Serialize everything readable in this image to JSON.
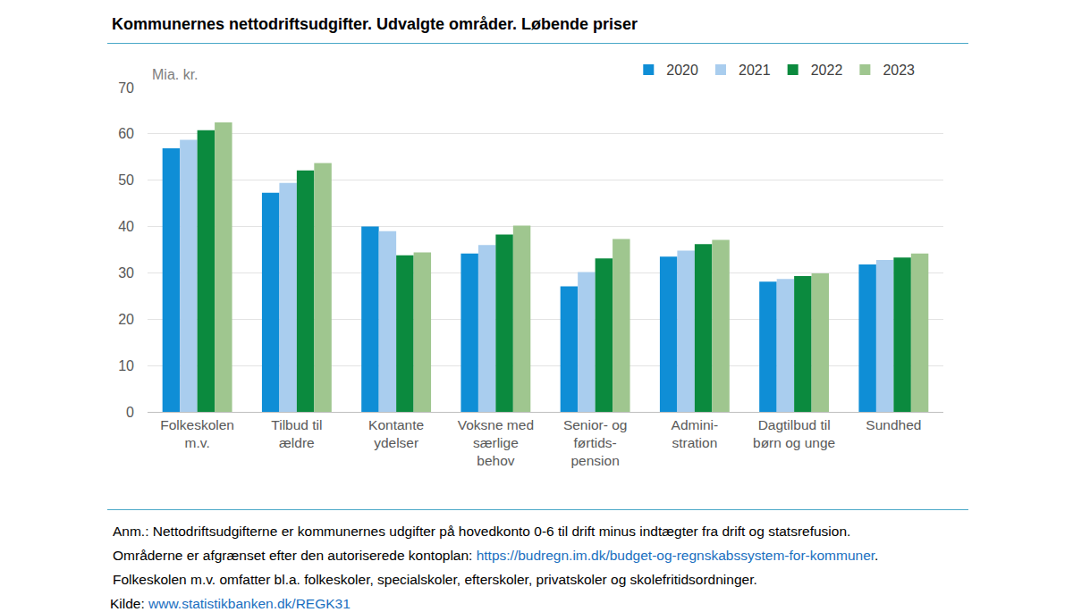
{
  "chart_data": {
    "type": "bar",
    "title": "Kommunernes nettodriftsudgifter. Udvalgte områder. Løbende priser",
    "y_label": "Mia. kr.",
    "categories": [
      "Folkeskolen\nm.v.",
      "Tilbud til\nældre",
      "Kontante\nydelser",
      "Voksne med\nsærlige\nbehov",
      "Senior- og\nførtids-\npension",
      "Admini-\nstration",
      "Dagtilbud til\nbørn og unge",
      "Sundhed"
    ],
    "series": [
      {
        "name": "2020",
        "color": "#0f8ed6",
        "values": [
          56.9,
          47.3,
          40.0,
          34.2,
          27.1,
          33.5,
          28.1,
          31.8
        ]
      },
      {
        "name": "2021",
        "color": "#a9cdee",
        "values": [
          58.7,
          49.4,
          39.0,
          36.0,
          30.2,
          34.8,
          28.7,
          32.8
        ]
      },
      {
        "name": "2022",
        "color": "#0b8a3e",
        "values": [
          60.8,
          52.1,
          33.8,
          38.3,
          33.1,
          36.2,
          29.3,
          33.3
        ]
      },
      {
        "name": "2023",
        "color": "#9fc68f",
        "values": [
          62.5,
          53.7,
          34.4,
          40.2,
          37.3,
          37.1,
          29.9,
          34.2
        ]
      }
    ],
    "ylim": [
      0,
      70
    ],
    "yticks": [
      0,
      10,
      20,
      30,
      40,
      50,
      60,
      70
    ],
    "grid": true,
    "legend": "top right",
    "notes": [
      "Anm.: Nettodriftsudgifterne er kommunernes udgifter på hovedkonto 0-6 til drift minus indtægter fra drift og statsrefusion.",
      "Områderne er afgrænset efter den autoriserede kontoplan: https://budregn.im.dk/budget-og-regnskabssystem-for-kommuner.",
      "Folkeskolen m.v. omfatter bl.a. folkeskoler, specialskoler, efterskoler, privatskoler og skolefritidsordninger.",
      "Kilde: www.statistikbanken.dk/REGK31"
    ]
  }
}
